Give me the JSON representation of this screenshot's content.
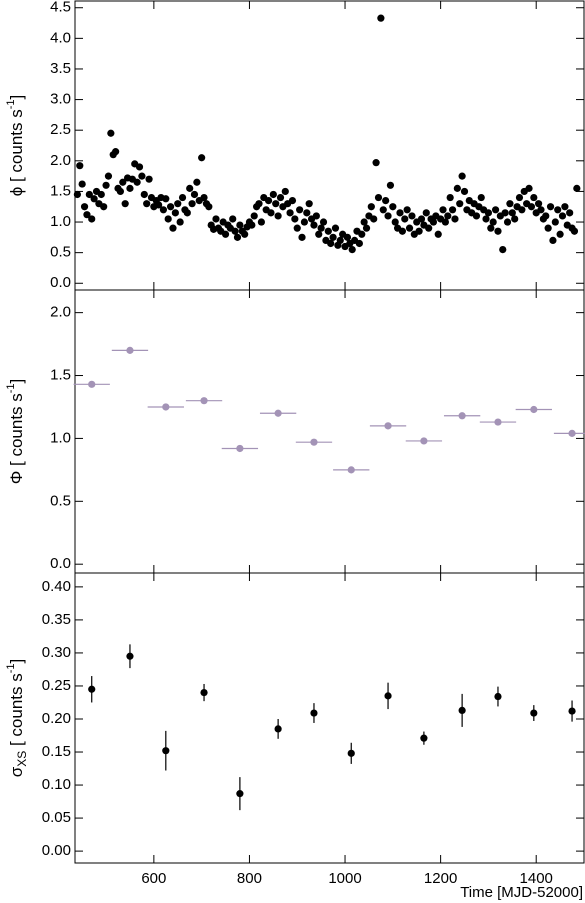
{
  "chart_data": [
    {
      "type": "scatter",
      "color": "#000000",
      "ylabel": {
        "text": "ϕ [ counts s",
        "sup": "-1",
        "close": "]"
      },
      "xlim": [
        435,
        1500
      ],
      "ylim": [
        -0.11,
        4.61
      ],
      "yticks": [
        {
          "value": 0,
          "label": "0.0"
        },
        {
          "value": 0.5,
          "label": "0.5"
        },
        {
          "value": 1,
          "label": "1.0"
        },
        {
          "value": 1.5,
          "label": "1.5"
        },
        {
          "value": 2,
          "label": "2.0"
        },
        {
          "value": 2.5,
          "label": "2.5"
        },
        {
          "value": 3,
          "label": "3.0"
        },
        {
          "value": 3.5,
          "label": "3.5"
        },
        {
          "value": 4,
          "label": "4.0"
        },
        {
          "value": 4.5,
          "label": "4.5"
        }
      ],
      "x": [
        440,
        445,
        450,
        455,
        460,
        465,
        470,
        475,
        480,
        485,
        490,
        495,
        500,
        505,
        510,
        515,
        520,
        525,
        530,
        535,
        540,
        545,
        550,
        555,
        560,
        565,
        570,
        575,
        580,
        585,
        590,
        595,
        600,
        605,
        610,
        615,
        620,
        625,
        630,
        635,
        640,
        645,
        650,
        655,
        660,
        665,
        670,
        675,
        680,
        685,
        690,
        695,
        700,
        705,
        710,
        715,
        720,
        725,
        730,
        735,
        740,
        745,
        750,
        755,
        760,
        765,
        770,
        775,
        780,
        785,
        790,
        795,
        800,
        805,
        810,
        815,
        820,
        825,
        830,
        835,
        840,
        845,
        850,
        855,
        860,
        865,
        870,
        875,
        880,
        885,
        890,
        895,
        900,
        905,
        910,
        915,
        920,
        925,
        930,
        935,
        940,
        945,
        950,
        955,
        960,
        965,
        970,
        975,
        980,
        985,
        990,
        995,
        1000,
        1005,
        1010,
        1015,
        1020,
        1025,
        1030,
        1035,
        1040,
        1045,
        1050,
        1055,
        1060,
        1065,
        1070,
        1075,
        1080,
        1085,
        1090,
        1095,
        1100,
        1105,
        1110,
        1115,
        1120,
        1125,
        1130,
        1135,
        1140,
        1145,
        1150,
        1155,
        1160,
        1165,
        1170,
        1175,
        1180,
        1185,
        1190,
        1195,
        1200,
        1205,
        1210,
        1215,
        1220,
        1225,
        1230,
        1235,
        1240,
        1245,
        1250,
        1255,
        1260,
        1265,
        1270,
        1275,
        1280,
        1285,
        1290,
        1295,
        1300,
        1305,
        1310,
        1315,
        1320,
        1325,
        1330,
        1335,
        1340,
        1345,
        1350,
        1355,
        1360,
        1365,
        1370,
        1375,
        1380,
        1385,
        1390,
        1395,
        1400,
        1405,
        1410,
        1415,
        1420,
        1425,
        1430,
        1435,
        1440,
        1445,
        1450,
        1455,
        1460,
        1465,
        1470,
        1475,
        1480,
        1485
      ],
      "values": [
        1.45,
        1.92,
        1.62,
        1.25,
        1.12,
        1.45,
        1.05,
        1.38,
        1.5,
        1.3,
        1.45,
        1.25,
        1.6,
        1.75,
        2.45,
        2.1,
        2.15,
        1.55,
        1.5,
        1.65,
        1.3,
        1.72,
        1.55,
        1.7,
        1.95,
        1.65,
        1.9,
        1.75,
        1.45,
        1.3,
        1.7,
        1.4,
        1.25,
        1.35,
        1.28,
        1.4,
        1.2,
        1.38,
        1.05,
        1.25,
        0.9,
        1.15,
        1.3,
        1.0,
        1.4,
        1.2,
        1.15,
        1.55,
        1.3,
        1.45,
        1.65,
        1.35,
        2.05,
        1.4,
        1.3,
        1.25,
        0.95,
        0.88,
        1.05,
        0.9,
        0.85,
        1.0,
        0.8,
        0.95,
        0.9,
        1.05,
        0.85,
        0.75,
        0.95,
        0.85,
        0.8,
        0.92,
        1.0,
        0.95,
        1.1,
        1.25,
        1.3,
        1.0,
        1.4,
        1.2,
        1.35,
        1.15,
        1.45,
        1.3,
        1.1,
        1.4,
        1.25,
        1.5,
        1.3,
        1.15,
        1.35,
        1.05,
        0.9,
        1.2,
        0.75,
        1.0,
        1.15,
        1.3,
        1.05,
        0.95,
        1.1,
        0.8,
        0.9,
        1.0,
        0.7,
        0.85,
        0.65,
        0.75,
        0.9,
        0.62,
        0.7,
        0.8,
        0.6,
        0.75,
        0.65,
        0.55,
        0.7,
        0.85,
        0.65,
        0.8,
        1.0,
        0.9,
        1.1,
        1.25,
        1.05,
        1.97,
        1.4,
        4.33,
        1.2,
        1.35,
        1.1,
        1.6,
        1.25,
        1.0,
        0.9,
        1.15,
        0.85,
        1.05,
        1.2,
        0.9,
        1.1,
        0.8,
        1.0,
        0.85,
        1.05,
        0.95,
        1.15,
        0.9,
        1.05,
        1.0,
        1.1,
        0.8,
        1.05,
        1.2,
        1.0,
        1.1,
        1.4,
        1.2,
        1.05,
        1.55,
        1.3,
        1.75,
        1.5,
        1.2,
        1.35,
        1.15,
        1.3,
        1.1,
        1.25,
        1.4,
        1.2,
        1.05,
        1.15,
        0.9,
        1.0,
        1.2,
        0.85,
        1.1,
        0.55,
        1.15,
        1.0,
        1.3,
        1.15,
        1.05,
        1.25,
        1.4,
        1.2,
        1.5,
        1.3,
        1.55,
        1.25,
        1.4,
        1.15,
        1.3,
        1.2,
        1.05,
        1.1,
        0.9,
        1.25,
        0.7,
        1.0,
        1.2,
        0.8,
        1.1,
        1.25,
        0.95,
        1.15,
        0.9,
        0.85,
        1.55
      ]
    },
    {
      "type": "scatter",
      "color": "#a393b6",
      "ylabel": {
        "text": "Φ [ counts s",
        "sup": "-1",
        "close": "]"
      },
      "xlim": [
        435,
        1500
      ],
      "ylim": [
        -0.07,
        2.18
      ],
      "yticks": [
        {
          "value": 0,
          "label": "0.0"
        },
        {
          "value": 0.5,
          "label": "0.5"
        },
        {
          "value": 1,
          "label": "1.0"
        },
        {
          "value": 1.5,
          "label": "1.5"
        },
        {
          "value": 2,
          "label": "2.0"
        }
      ],
      "x": [
        470,
        550,
        625,
        705,
        780,
        860,
        935,
        1013,
        1090,
        1165,
        1245,
        1320,
        1395,
        1475
      ],
      "xerr": [
        38,
        38,
        38,
        38,
        38,
        38,
        38,
        38,
        38,
        38,
        38,
        38,
        38,
        38
      ],
      "values": [
        1.43,
        1.7,
        1.25,
        1.3,
        0.92,
        1.2,
        0.97,
        0.75,
        1.1,
        0.98,
        1.18,
        1.13,
        1.23,
        1.04
      ]
    },
    {
      "type": "scatter",
      "color": "#000000",
      "ylabel": {
        "text": "σ",
        "sub": "XS",
        "rest": " [ counts s",
        "sup": "-1",
        "close": "]"
      },
      "xlabel": "Time [MJD-52000]",
      "xlim": [
        435,
        1500
      ],
      "ylim": [
        -0.018,
        0.421
      ],
      "xticks": [
        600,
        800,
        1000,
        1200,
        1400
      ],
      "yticks": [
        {
          "value": 0,
          "label": "0.00"
        },
        {
          "value": 0.05,
          "label": "0.05"
        },
        {
          "value": 0.1,
          "label": "0.10"
        },
        {
          "value": 0.15,
          "label": "0.15"
        },
        {
          "value": 0.2,
          "label": "0.20"
        },
        {
          "value": 0.25,
          "label": "0.25"
        },
        {
          "value": 0.3,
          "label": "0.30"
        },
        {
          "value": 0.35,
          "label": "0.35"
        },
        {
          "value": 0.4,
          "label": "0.40"
        }
      ],
      "x": [
        470,
        550,
        625,
        705,
        780,
        860,
        935,
        1013,
        1090,
        1165,
        1245,
        1320,
        1395,
        1475
      ],
      "values": [
        0.245,
        0.295,
        0.152,
        0.24,
        0.087,
        0.185,
        0.209,
        0.148,
        0.235,
        0.171,
        0.213,
        0.234,
        0.209,
        0.212
      ],
      "errors": [
        0.02,
        0.018,
        0.03,
        0.013,
        0.025,
        0.015,
        0.015,
        0.016,
        0.02,
        0.01,
        0.025,
        0.015,
        0.012,
        0.016
      ]
    }
  ]
}
